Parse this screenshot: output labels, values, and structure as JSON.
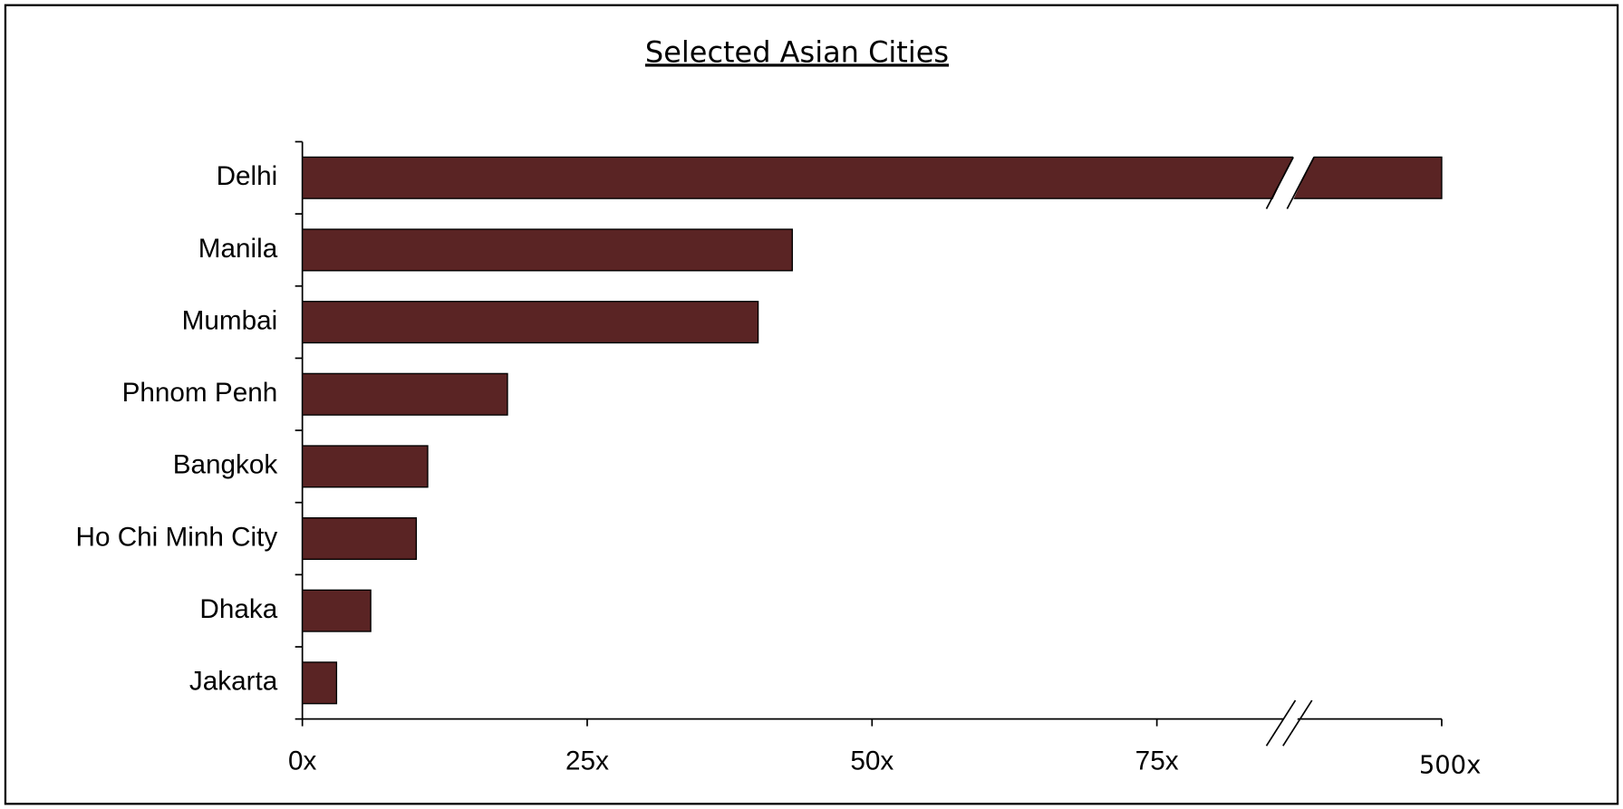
{
  "chart_data": {
    "type": "bar",
    "orientation": "horizontal",
    "title": "Selected Asian Cities",
    "categories": [
      "Delhi",
      "Manila",
      "Mumbai",
      "Phnom Penh",
      "Bangkok",
      "Ho Chi Minh City",
      "Dhaka",
      "Jakarta"
    ],
    "values": [
      500,
      43,
      40,
      18,
      11,
      10,
      6,
      3
    ],
    "color": "#5a2424",
    "xlim": [
      0,
      500
    ],
    "xticks": [
      {
        "value": 0,
        "label": "0x"
      },
      {
        "value": 25,
        "label": "25x"
      },
      {
        "value": 50,
        "label": "50x"
      },
      {
        "value": 75,
        "label": "75x"
      },
      {
        "value": 500,
        "label": "500x"
      }
    ],
    "axis_break": true,
    "grid": false
  }
}
